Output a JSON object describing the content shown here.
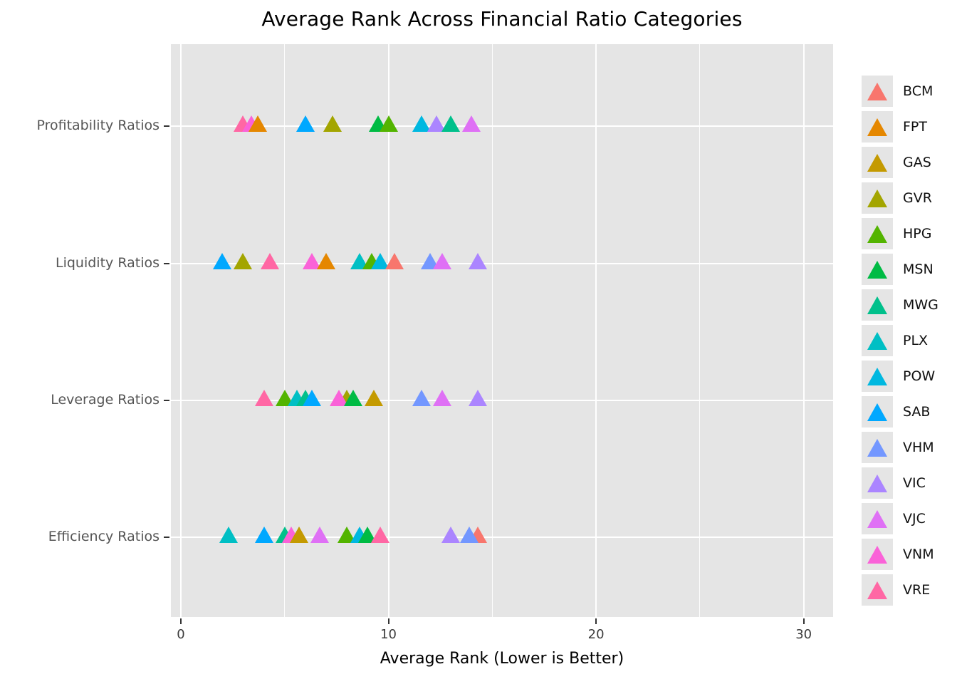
{
  "title": "Average Rank Across Financial Ratio Categories",
  "chart_data": {
    "type": "scatter",
    "title": "Average Rank Across Financial Ratio Categories",
    "xlabel": "Average Rank (Lower is Better)",
    "ylabel": "",
    "marker": "triangle-up",
    "grid": true,
    "legend_position": "right",
    "plot_bg": "#E5E5E5",
    "gridline_color": "#FFFFFF",
    "xlim": [
      -0.5,
      31.5
    ],
    "x_ticks": [
      0,
      10,
      20,
      30
    ],
    "x_gridlines_major": [
      0,
      10,
      20,
      30
    ],
    "x_gridlines_minor": [
      5,
      15,
      25
    ],
    "categories": [
      "Profitability Ratios",
      "Liquidity Ratios",
      "Leverage Ratios",
      "Efficiency Ratios"
    ],
    "tickers": [
      {
        "name": "BCM",
        "color": "#F8766D"
      },
      {
        "name": "FPT",
        "color": "#E58700"
      },
      {
        "name": "GAS",
        "color": "#C49A00"
      },
      {
        "name": "GVR",
        "color": "#A3A500"
      },
      {
        "name": "HPG",
        "color": "#53B400"
      },
      {
        "name": "MSN",
        "color": "#00BB44"
      },
      {
        "name": "MWG",
        "color": "#00C08B"
      },
      {
        "name": "PLX",
        "color": "#00BFC4"
      },
      {
        "name": "POW",
        "color": "#00B8E0"
      },
      {
        "name": "SAB",
        "color": "#00A8FF"
      },
      {
        "name": "VHM",
        "color": "#7397FF"
      },
      {
        "name": "VIC",
        "color": "#AB85FF"
      },
      {
        "name": "VJC",
        "color": "#DF70F5"
      },
      {
        "name": "VNM",
        "color": "#FA62D8"
      },
      {
        "name": "VRE",
        "color": "#FF67A4"
      }
    ],
    "rows": [
      {
        "label": "Profitability Ratios",
        "points": [
          {
            "ticker": "VRE",
            "value": 3.0
          },
          {
            "ticker": "VNM",
            "value": 3.4
          },
          {
            "ticker": "FPT",
            "value": 3.7
          },
          {
            "ticker": "SAB",
            "value": 6.0
          },
          {
            "ticker": "GVR",
            "value": 7.3
          },
          {
            "ticker": "MSN",
            "value": 9.5
          },
          {
            "ticker": "HPG",
            "value": 10.0
          },
          {
            "ticker": "POW",
            "value": 11.6
          },
          {
            "ticker": "VIC",
            "value": 12.3
          },
          {
            "ticker": "MWG",
            "value": 13.0
          },
          {
            "ticker": "VJC",
            "value": 14.0
          }
        ]
      },
      {
        "label": "Liquidity Ratios",
        "points": [
          {
            "ticker": "SAB",
            "value": 2.0
          },
          {
            "ticker": "GVR",
            "value": 3.0
          },
          {
            "ticker": "VRE",
            "value": 4.3
          },
          {
            "ticker": "VNM",
            "value": 6.3
          },
          {
            "ticker": "FPT",
            "value": 7.0
          },
          {
            "ticker": "PLX",
            "value": 8.6
          },
          {
            "ticker": "HPG",
            "value": 9.2
          },
          {
            "ticker": "POW",
            "value": 9.6
          },
          {
            "ticker": "BCM",
            "value": 10.3
          },
          {
            "ticker": "VHM",
            "value": 12.0
          },
          {
            "ticker": "VJC",
            "value": 12.6
          },
          {
            "ticker": "VIC",
            "value": 14.3
          }
        ]
      },
      {
        "label": "Leverage Ratios",
        "points": [
          {
            "ticker": "VRE",
            "value": 4.0
          },
          {
            "ticker": "HPG",
            "value": 5.0
          },
          {
            "ticker": "PLX",
            "value": 5.6
          },
          {
            "ticker": "MWG",
            "value": 6.0
          },
          {
            "ticker": "SAB",
            "value": 6.3
          },
          {
            "ticker": "GVR",
            "value": 8.0
          },
          {
            "ticker": "VNM",
            "value": 7.6
          },
          {
            "ticker": "MSN",
            "value": 8.3
          },
          {
            "ticker": "GAS",
            "value": 9.3
          },
          {
            "ticker": "VHM",
            "value": 11.6
          },
          {
            "ticker": "VJC",
            "value": 12.6
          },
          {
            "ticker": "VIC",
            "value": 14.3
          }
        ]
      },
      {
        "label": "Efficiency Ratios",
        "points": [
          {
            "ticker": "PLX",
            "value": 2.3
          },
          {
            "ticker": "SAB",
            "value": 4.0
          },
          {
            "ticker": "MWG",
            "value": 5.0
          },
          {
            "ticker": "VNM",
            "value": 5.3
          },
          {
            "ticker": "GAS",
            "value": 5.7
          },
          {
            "ticker": "VJC",
            "value": 6.7
          },
          {
            "ticker": "HPG",
            "value": 8.0
          },
          {
            "ticker": "POW",
            "value": 8.6
          },
          {
            "ticker": "MSN",
            "value": 9.0
          },
          {
            "ticker": "VRE",
            "value": 9.6
          },
          {
            "ticker": "VIC",
            "value": 13.0
          },
          {
            "ticker": "BCM",
            "value": 14.3
          },
          {
            "ticker": "VHM",
            "value": 13.9
          }
        ]
      }
    ]
  }
}
